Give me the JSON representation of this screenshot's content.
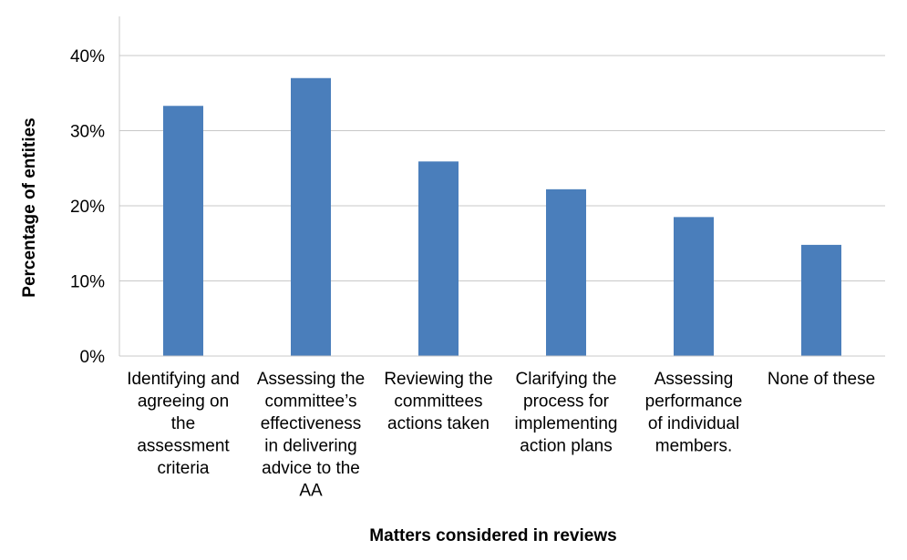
{
  "chart_data": {
    "type": "bar",
    "title": "",
    "xlabel": "Matters considered in reviews",
    "ylabel": "Percentage of entities",
    "categories": [
      [
        "Identifying and",
        "agreeing on",
        "the",
        "assessment",
        "criteria"
      ],
      [
        "Assessing the",
        "committee’s",
        "effectiveness",
        "in delivering",
        "advice to the",
        "AA"
      ],
      [
        "Reviewing the",
        "committees",
        "actions taken"
      ],
      [
        "Clarifying the",
        "process for",
        "implementing",
        "action plans"
      ],
      [
        "Assessing",
        "performance",
        "of individual",
        "members."
      ],
      [
        "None of these"
      ]
    ],
    "values": [
      33.3,
      37.0,
      25.9,
      22.2,
      18.5,
      14.8
    ],
    "ylim": [
      0,
      40
    ],
    "yticks": [
      0,
      10,
      20,
      30,
      40
    ],
    "ytick_labels": [
      "0%",
      "10%",
      "20%",
      "30%",
      "40%"
    ],
    "grid": true,
    "bar_color": "#4a7ebb",
    "grid_color": "#c8c8c8"
  }
}
